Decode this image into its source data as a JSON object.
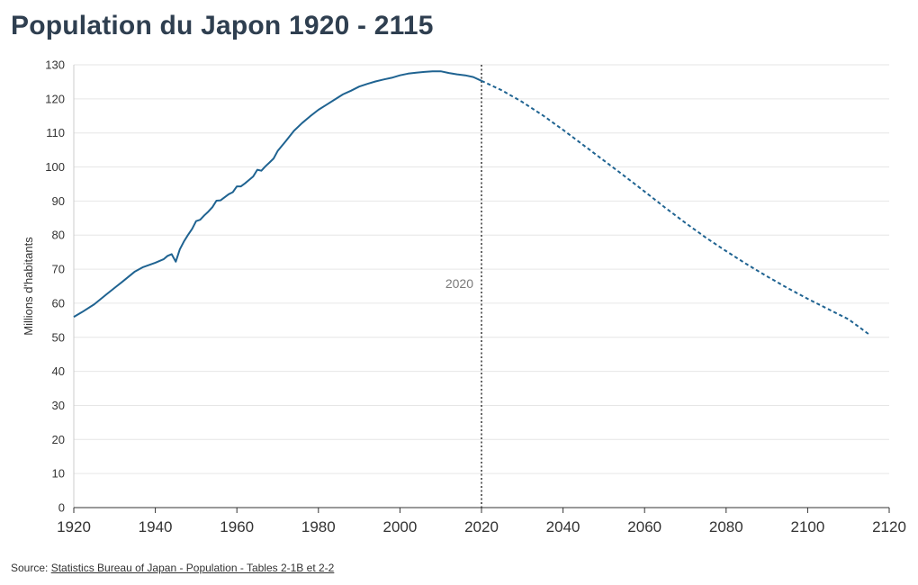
{
  "chart_data": {
    "type": "line",
    "title": "Population du Japon 1920 - 2115",
    "ylabel": "Millions d'habitants",
    "xlabel": "",
    "xlim": [
      1920,
      2120
    ],
    "ylim": [
      0,
      130
    ],
    "x_ticks": [
      "1920",
      "1940",
      "1960",
      "1980",
      "2000",
      "2020",
      "2040",
      "2060",
      "2080",
      "2100",
      "2120"
    ],
    "y_ticks": [
      "0",
      "10",
      "20",
      "30",
      "40",
      "50",
      "60",
      "70",
      "80",
      "90",
      "100",
      "110",
      "120",
      "130"
    ],
    "grid": true,
    "annotation": {
      "x": 2020,
      "label": "2020"
    },
    "series": [
      {
        "kind": "historical",
        "color": "#1f6391",
        "points": [
          [
            1920,
            56.0
          ],
          [
            1922,
            57.4
          ],
          [
            1925,
            59.7
          ],
          [
            1928,
            62.6
          ],
          [
            1930,
            64.5
          ],
          [
            1932,
            66.4
          ],
          [
            1935,
            69.3
          ],
          [
            1937,
            70.6
          ],
          [
            1940,
            71.9
          ],
          [
            1942,
            72.9
          ],
          [
            1943,
            73.9
          ],
          [
            1944,
            74.4
          ],
          [
            1945,
            72.2
          ],
          [
            1946,
            75.8
          ],
          [
            1947,
            78.1
          ],
          [
            1948,
            80.0
          ],
          [
            1949,
            81.8
          ],
          [
            1950,
            84.1
          ],
          [
            1951,
            84.5
          ],
          [
            1952,
            85.8
          ],
          [
            1953,
            86.9
          ],
          [
            1954,
            88.2
          ],
          [
            1955,
            90.1
          ],
          [
            1956,
            90.2
          ],
          [
            1957,
            91.1
          ],
          [
            1958,
            92.0
          ],
          [
            1959,
            92.6
          ],
          [
            1960,
            94.3
          ],
          [
            1961,
            94.3
          ],
          [
            1962,
            95.2
          ],
          [
            1963,
            96.2
          ],
          [
            1964,
            97.2
          ],
          [
            1965,
            99.2
          ],
          [
            1966,
            98.9
          ],
          [
            1967,
            100.2
          ],
          [
            1968,
            101.3
          ],
          [
            1969,
            102.5
          ],
          [
            1970,
            104.7
          ],
          [
            1972,
            107.6
          ],
          [
            1974,
            110.6
          ],
          [
            1976,
            112.9
          ],
          [
            1978,
            114.9
          ],
          [
            1980,
            116.8
          ],
          [
            1982,
            118.3
          ],
          [
            1984,
            119.8
          ],
          [
            1986,
            121.3
          ],
          [
            1988,
            122.4
          ],
          [
            1990,
            123.6
          ],
          [
            1992,
            124.4
          ],
          [
            1994,
            125.1
          ],
          [
            1996,
            125.7
          ],
          [
            1998,
            126.2
          ],
          [
            2000,
            126.9
          ],
          [
            2002,
            127.4
          ],
          [
            2004,
            127.7
          ],
          [
            2006,
            127.9
          ],
          [
            2008,
            128.1
          ],
          [
            2010,
            128.1
          ],
          [
            2012,
            127.6
          ],
          [
            2014,
            127.2
          ],
          [
            2016,
            126.9
          ],
          [
            2018,
            126.4
          ],
          [
            2020,
            125.3
          ]
        ]
      },
      {
        "kind": "projection",
        "color": "#1f6391",
        "points": [
          [
            2020,
            125.3
          ],
          [
            2025,
            122.5
          ],
          [
            2030,
            119.1
          ],
          [
            2035,
            115.2
          ],
          [
            2040,
            110.9
          ],
          [
            2045,
            106.4
          ],
          [
            2050,
            101.9
          ],
          [
            2055,
            97.4
          ],
          [
            2060,
            92.8
          ],
          [
            2065,
            88.1
          ],
          [
            2070,
            83.6
          ],
          [
            2075,
            79.3
          ],
          [
            2080,
            75.3
          ],
          [
            2085,
            71.5
          ],
          [
            2090,
            67.9
          ],
          [
            2095,
            64.5
          ],
          [
            2100,
            61.3
          ],
          [
            2105,
            58.3
          ],
          [
            2110,
            55.3
          ],
          [
            2115,
            50.9
          ]
        ]
      }
    ]
  },
  "source": {
    "prefix": "Source: ",
    "link_text": "Statistics Bureau of Japan - Population - Tables 2-1B et 2-2"
  }
}
